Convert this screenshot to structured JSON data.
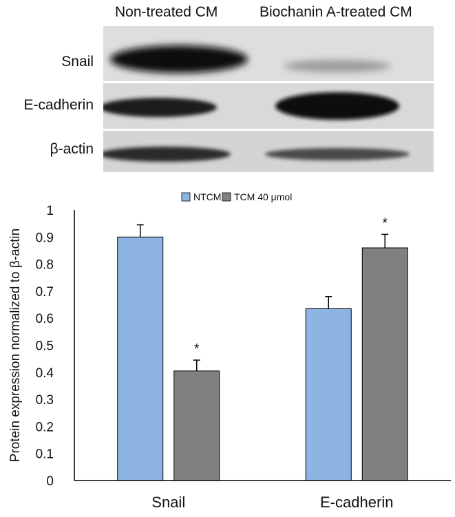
{
  "blot": {
    "columns": [
      "Non-treated CM",
      "Biochanin A-treated CM"
    ],
    "rows": [
      "Snail",
      "E-cadherin",
      "β-actin"
    ]
  },
  "chart_data": {
    "type": "bar",
    "categories": [
      "Snail",
      "E-cadherin"
    ],
    "series": [
      {
        "name": "NTCM",
        "values": [
          0.9,
          0.635
        ],
        "errors": [
          0.045,
          0.045
        ],
        "color": "#8db4e2"
      },
      {
        "name": "TCM 40 μmol",
        "values": [
          0.405,
          0.86
        ],
        "errors": [
          0.04,
          0.05
        ],
        "color": "#808080"
      }
    ],
    "significance": [
      {
        "series": 1,
        "category": 0,
        "mark": "*"
      },
      {
        "series": 1,
        "category": 1,
        "mark": "*"
      }
    ],
    "xlabel": "",
    "ylabel": "Protein expression  normalized to β-actin",
    "ylim": [
      0,
      1
    ],
    "yticks": [
      "0",
      "0.1",
      "0.2",
      "0.3",
      "0.4",
      "0.5",
      "0.6",
      "0.7",
      "0.8",
      "0.9",
      "1"
    ],
    "grid": false,
    "legend": "top-center"
  }
}
